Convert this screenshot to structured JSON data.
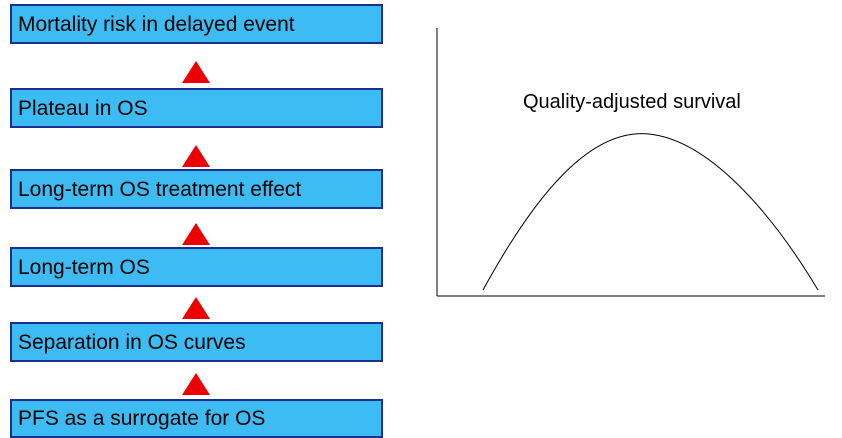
{
  "flow": {
    "steps": [
      {
        "label": "Mortality risk in delayed event"
      },
      {
        "label": "Plateau in OS"
      },
      {
        "label": "Long-term OS treatment effect"
      },
      {
        "label": "Long-term OS"
      },
      {
        "label": "Separation in OS curves"
      },
      {
        "label": "PFS as a surrogate for OS"
      }
    ],
    "arrow_color": "#ee0000",
    "box_color": "#3dbcf4",
    "box_border_color": "#1c2f8f"
  },
  "chart": {
    "title": "Quality-adjusted survival",
    "curve_shape": "bell-shaped hump",
    "axes_color": "#000000"
  }
}
